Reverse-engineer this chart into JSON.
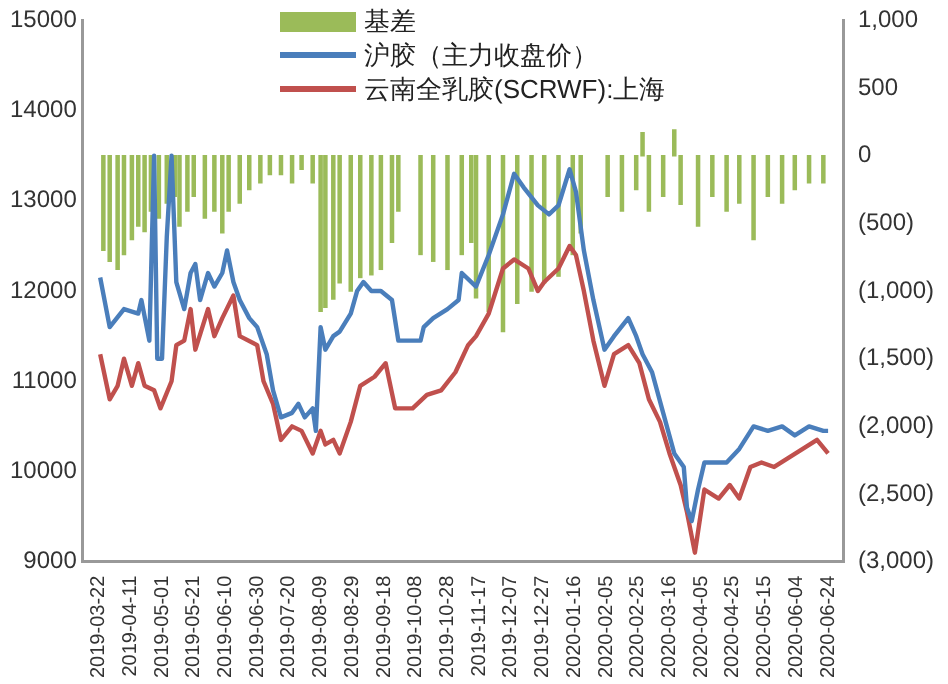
{
  "chart_data": {
    "type": "line",
    "legend": "top",
    "grid": false,
    "xlim": [
      "2019-03-22",
      "2020-06-24"
    ],
    "xticks": [
      "2019-03-22",
      "2019-04-11",
      "2019-05-01",
      "2019-05-21",
      "2019-06-10",
      "2019-06-30",
      "2019-07-20",
      "2019-08-09",
      "2019-08-29",
      "2019-09-18",
      "2019-10-08",
      "2019-10-28",
      "2019-11-17",
      "2019-12-07",
      "2019-12-27",
      "2020-01-16",
      "2020-02-05",
      "2020-02-25",
      "2020-03-16",
      "2020-04-05",
      "2020-04-25",
      "2020-05-15",
      "2020-06-04",
      "2020-06-24"
    ],
    "ylim": [
      9000,
      15000
    ],
    "yticks": [
      9000,
      10000,
      11000,
      12000,
      13000,
      14000,
      15000
    ],
    "y2lim": [
      -3000,
      1000
    ],
    "y2ticks": [
      {
        "value": -3000,
        "label": "(3,000)"
      },
      {
        "value": -2500,
        "label": "(2,500)"
      },
      {
        "value": -2000,
        "label": "(2,000)"
      },
      {
        "value": -1500,
        "label": "(1,500)"
      },
      {
        "value": -1000,
        "label": "(1,000)"
      },
      {
        "value": -500,
        "label": "(500)"
      },
      0,
      500,
      {
        "value": 1000,
        "label": "1,000"
      }
    ],
    "series": [
      {
        "name": "基差",
        "type": "bar",
        "axis": "y2",
        "color": "#9bbb59",
        "x": [
          "2019-03-25",
          "2019-03-29",
          "2019-04-03",
          "2019-04-07",
          "2019-04-12",
          "2019-04-16",
          "2019-04-20",
          "2019-04-24",
          "2019-04-29",
          "2019-05-04",
          "2019-05-09",
          "2019-05-12",
          "2019-05-17",
          "2019-05-21",
          "2019-05-28",
          "2019-06-03",
          "2019-06-08",
          "2019-06-12",
          "2019-06-19",
          "2019-06-25",
          "2019-07-02",
          "2019-07-08",
          "2019-07-15",
          "2019-07-22",
          "2019-07-28",
          "2019-08-04",
          "2019-08-09",
          "2019-08-12",
          "2019-08-17",
          "2019-08-21",
          "2019-08-28",
          "2019-09-03",
          "2019-09-10",
          "2019-09-16",
          "2019-09-23",
          "2019-09-27",
          "2019-10-11",
          "2019-10-19",
          "2019-10-28",
          "2019-11-06",
          "2019-11-12",
          "2019-11-15",
          "2019-11-23",
          "2019-12-02",
          "2019-12-11",
          "2019-12-20",
          "2019-12-28",
          "2020-01-06",
          "2020-01-15",
          "2020-01-20",
          "2020-02-06",
          "2020-02-15",
          "2020-02-24",
          "2020-02-28",
          "2020-03-03",
          "2020-03-12",
          "2020-03-19",
          "2020-03-23",
          "2020-04-03",
          "2020-04-12",
          "2020-04-21",
          "2020-04-29",
          "2020-05-08",
          "2020-05-17",
          "2020-05-26",
          "2020-06-03",
          "2020-06-12",
          "2020-06-21"
        ],
        "values": [
          -700,
          -780,
          -840,
          -730,
          -620,
          -520,
          -560,
          -410,
          -460,
          -350,
          -300,
          -520,
          -410,
          -300,
          -460,
          -410,
          -570,
          -410,
          -350,
          -250,
          -200,
          -140,
          -140,
          -200,
          -100,
          -200,
          -1150,
          -1120,
          -1060,
          -940,
          -1000,
          -900,
          -880,
          -840,
          -640,
          -410,
          -730,
          -780,
          -840,
          -730,
          -640,
          -1050,
          -1150,
          -1300,
          -1090,
          -1000,
          -940,
          -890,
          -730,
          -570,
          -300,
          -410,
          -250,
          170,
          -410,
          -300,
          190,
          -360,
          -520,
          -300,
          -410,
          -350,
          -620,
          -300,
          -350,
          -250,
          -200,
          -200
        ]
      },
      {
        "name": "沪胶（主力收盘价）",
        "color": "#4a7ebb",
        "x": [
          "2019-03-23",
          "2019-03-29",
          "2019-04-07",
          "2019-04-16",
          "2019-04-18",
          "2019-04-23",
          "2019-04-26",
          "2019-04-28",
          "2019-05-01",
          "2019-05-04",
          "2019-05-07",
          "2019-05-10",
          "2019-05-15",
          "2019-05-19",
          "2019-05-22",
          "2019-05-25",
          "2019-05-30",
          "2019-06-03",
          "2019-06-08",
          "2019-06-11",
          "2019-06-15",
          "2019-06-19",
          "2019-06-25",
          "2019-06-30",
          "2019-07-06",
          "2019-07-10",
          "2019-07-15",
          "2019-07-22",
          "2019-07-26",
          "2019-07-30",
          "2019-08-04",
          "2019-08-06",
          "2019-08-09",
          "2019-08-12",
          "2019-08-17",
          "2019-08-21",
          "2019-08-28",
          "2019-09-01",
          "2019-09-05",
          "2019-09-10",
          "2019-09-16",
          "2019-09-23",
          "2019-09-27",
          "2019-10-11",
          "2019-10-13",
          "2019-10-19",
          "2019-10-28",
          "2019-11-04",
          "2019-11-06",
          "2019-11-15",
          "2019-11-23",
          "2019-12-02",
          "2019-12-09",
          "2019-12-15",
          "2019-12-24",
          "2019-12-31",
          "2020-01-06",
          "2020-01-13",
          "2020-01-17",
          "2020-01-22",
          "2020-01-28",
          "2020-02-04",
          "2020-02-10",
          "2020-02-19",
          "2020-02-24",
          "2020-02-28",
          "2020-03-05",
          "2020-03-12",
          "2020-03-19",
          "2020-03-25",
          "2020-03-27",
          "2020-03-30",
          "2020-04-03",
          "2020-04-07",
          "2020-04-14",
          "2020-04-21",
          "2020-04-29",
          "2020-05-08",
          "2020-05-17",
          "2020-05-26",
          "2020-06-03",
          "2020-06-12",
          "2020-06-21",
          "2020-06-24"
        ],
        "values": [
          12150,
          11600,
          11800,
          11750,
          11900,
          11450,
          13500,
          11250,
          11250,
          12600,
          13500,
          12100,
          11800,
          12200,
          12300,
          11900,
          12200,
          12050,
          12200,
          12450,
          12100,
          11900,
          11700,
          11600,
          11300,
          10900,
          10600,
          10650,
          10750,
          10600,
          10700,
          10450,
          11600,
          11350,
          11500,
          11550,
          11750,
          12000,
          12100,
          12000,
          12000,
          11900,
          11450,
          11450,
          11600,
          11700,
          11800,
          11900,
          12200,
          12050,
          12400,
          12850,
          13300,
          13150,
          12950,
          12850,
          12950,
          13350,
          13100,
          12450,
          11900,
          11350,
          11500,
          11700,
          11500,
          11300,
          11100,
          10650,
          10200,
          10050,
          9600,
          9450,
          9800,
          10100,
          10100,
          10100,
          10250,
          10500,
          10450,
          10500,
          10400,
          10500,
          10450,
          10450
        ]
      },
      {
        "name": "云南全乳胶(SCRWF):上海",
        "color": "#c0504d",
        "x": [
          "2019-03-23",
          "2019-03-29",
          "2019-04-03",
          "2019-04-07",
          "2019-04-12",
          "2019-04-16",
          "2019-04-20",
          "2019-04-26",
          "2019-04-30",
          "2019-05-07",
          "2019-05-10",
          "2019-05-15",
          "2019-05-19",
          "2019-05-22",
          "2019-05-30",
          "2019-06-03",
          "2019-06-08",
          "2019-06-15",
          "2019-06-19",
          "2019-06-30",
          "2019-07-04",
          "2019-07-10",
          "2019-07-15",
          "2019-07-22",
          "2019-07-28",
          "2019-08-04",
          "2019-08-09",
          "2019-08-12",
          "2019-08-17",
          "2019-08-21",
          "2019-08-28",
          "2019-09-03",
          "2019-09-12",
          "2019-09-19",
          "2019-09-25",
          "2019-10-06",
          "2019-10-15",
          "2019-10-24",
          "2019-11-02",
          "2019-11-10",
          "2019-11-15",
          "2019-11-23",
          "2019-12-02",
          "2019-12-09",
          "2019-12-18",
          "2019-12-24",
          "2019-12-28",
          "2020-01-06",
          "2020-01-13",
          "2020-01-17",
          "2020-01-22",
          "2020-01-28",
          "2020-02-04",
          "2020-02-10",
          "2020-02-19",
          "2020-02-26",
          "2020-03-03",
          "2020-03-10",
          "2020-03-16",
          "2020-03-23",
          "2020-03-27",
          "2020-04-01",
          "2020-04-07",
          "2020-04-16",
          "2020-04-23",
          "2020-04-29",
          "2020-05-06",
          "2020-05-13",
          "2020-05-21",
          "2020-05-30",
          "2020-06-08",
          "2020-06-17",
          "2020-06-24"
        ],
        "values": [
          11300,
          10800,
          10950,
          11250,
          10950,
          11200,
          10950,
          10900,
          10700,
          11000,
          11400,
          11450,
          11800,
          11350,
          11800,
          11500,
          11700,
          11950,
          11500,
          11400,
          11000,
          10750,
          10350,
          10500,
          10450,
          10200,
          10450,
          10300,
          10350,
          10200,
          10550,
          10950,
          11050,
          11200,
          10700,
          10700,
          10850,
          10900,
          11100,
          11400,
          11500,
          11750,
          12250,
          12350,
          12250,
          12000,
          12100,
          12250,
          12500,
          12400,
          12000,
          11450,
          10950,
          11300,
          11400,
          11200,
          10800,
          10550,
          10200,
          9850,
          9550,
          9100,
          9800,
          9700,
          9850,
          9700,
          10050,
          10100,
          10050,
          10150,
          10250,
          10350,
          10200
        ]
      }
    ]
  }
}
